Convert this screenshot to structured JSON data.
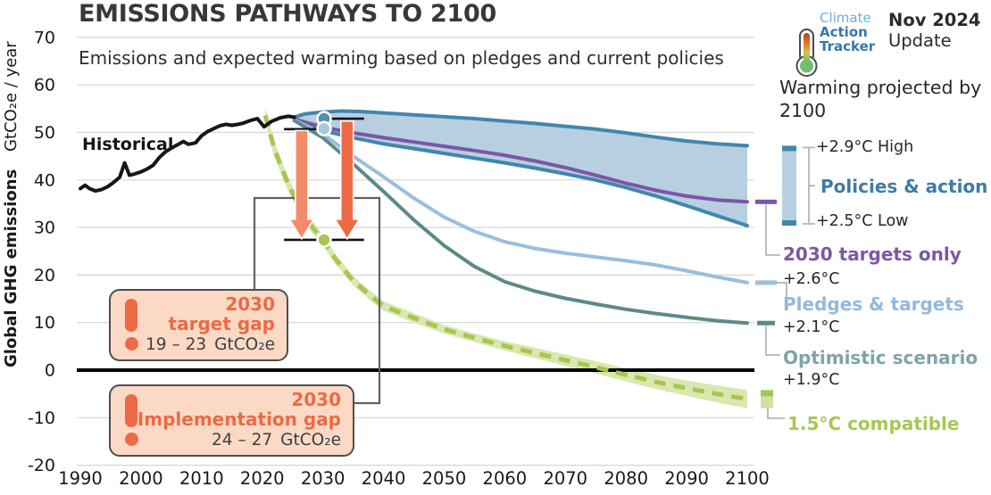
{
  "header": {
    "title": "EMISSIONS PATHWAYS TO 2100",
    "subtitle": "Emissions and expected warming based on pledges and current policies"
  },
  "logo": {
    "brand_line1": "Climate",
    "brand_line2": "Action",
    "brand_line3": "Tracker",
    "release_line1": "Nov 2024",
    "release_line2": "Update"
  },
  "axis": {
    "y_label_bold": "Global GHG emissions",
    "y_label_unit": "GtCO₂e / year"
  },
  "chart_labels": {
    "historical": "Historical"
  },
  "legend": {
    "heading": "Warming projected by 2100",
    "high": "+2.9°C High",
    "low": "+2.5°C Low",
    "targets_temp": "+2.6°C",
    "pledges_temp": "+2.1°C",
    "optimistic_temp": "+1.9°C"
  },
  "gap_boxes": {
    "target": {
      "year": "2030",
      "label": "target gap",
      "range": "19 – 23",
      "unit": "GtCO₂e"
    },
    "implementation": {
      "year": "2030",
      "label": "Implementation gap",
      "range": "24 – 27",
      "unit": "GtCO₂e"
    }
  },
  "colors": {
    "policies_stroke": "#4186ae",
    "policies_fill": "#b7cfe1",
    "targets_2030": "#7b57a5",
    "pledges": "#9abedd",
    "optimistic": "#5c8a88",
    "compatible_line": "#a4c751",
    "compatible_fill": "#dbe7af",
    "historical": "#161616",
    "arrow_target": "#f28b69",
    "arrow_implementation": "#ee6a47",
    "box_fill": "#fcd9c5",
    "box_text": "#ec6a45",
    "gridline": "#d5d5d5"
  },
  "chart_data": {
    "type": "line",
    "title": "EMISSIONS PATHWAYS TO 2100",
    "xlabel": "",
    "ylabel": "Global GHG emissions GtCO₂e / year",
    "xlim": [
      1990,
      2100
    ],
    "ylim": [
      -20,
      70
    ],
    "x_ticks": [
      1990,
      2000,
      2010,
      2020,
      2030,
      2040,
      2050,
      2060,
      2070,
      2080,
      2090,
      2100
    ],
    "y_ticks": [
      70,
      60,
      50,
      40,
      30,
      20,
      10,
      0,
      -10,
      -20
    ],
    "grid": true,
    "legend_position": "right",
    "series": [
      {
        "id": "historical",
        "name": "Historical",
        "type": "line",
        "color": "#161616",
        "width": 4,
        "points": [
          [
            1990,
            38.2
          ],
          [
            1990.8,
            38.9
          ],
          [
            1991.5,
            38.2
          ],
          [
            1992.5,
            37.7
          ],
          [
            1993.5,
            38.0
          ],
          [
            1994.5,
            38.6
          ],
          [
            1995.5,
            39.5
          ],
          [
            1996.5,
            40.6
          ],
          [
            1997.3,
            43.6
          ],
          [
            1998.1,
            41.0
          ],
          [
            1999,
            41.3
          ],
          [
            2000,
            41.7
          ],
          [
            2001,
            42.3
          ],
          [
            2002,
            43.1
          ],
          [
            2003,
            44.7
          ],
          [
            2004,
            45.9
          ],
          [
            2005,
            46.7
          ],
          [
            2006,
            47.4
          ],
          [
            2007,
            48.1
          ],
          [
            2007.8,
            47.5
          ],
          [
            2009,
            47.8
          ],
          [
            2010,
            49.3
          ],
          [
            2011,
            50.2
          ],
          [
            2012,
            50.8
          ],
          [
            2013,
            51.4
          ],
          [
            2014,
            51.7
          ],
          [
            2015,
            51.5
          ],
          [
            2016,
            51.7
          ],
          [
            2017,
            52.0
          ],
          [
            2018,
            52.5
          ],
          [
            2019.2,
            52.9
          ],
          [
            2020.3,
            51.2
          ],
          [
            2021.5,
            52.3
          ],
          [
            2023,
            53.1
          ],
          [
            2024.3,
            53.4
          ],
          [
            2025.3,
            53.2
          ]
        ]
      },
      {
        "id": "policies",
        "name": "Policies & action",
        "type": "band",
        "warming_high": "+2.9°C",
        "warming_low": "+2.5°C",
        "stroke": "#4186ae",
        "fill": "#b7cfe1",
        "width": 4,
        "upper": [
          [
            2025.3,
            53.2
          ],
          [
            2027,
            53.9
          ],
          [
            2030,
            54.3
          ],
          [
            2033,
            54.5
          ],
          [
            2036,
            54.4
          ],
          [
            2040,
            54.1
          ],
          [
            2045,
            53.7
          ],
          [
            2050,
            53.3
          ],
          [
            2055,
            52.9
          ],
          [
            2060,
            52.4
          ],
          [
            2065,
            51.9
          ],
          [
            2070,
            51.3
          ],
          [
            2075,
            50.7
          ],
          [
            2080,
            49.9
          ],
          [
            2085,
            49.0
          ],
          [
            2090,
            48.2
          ],
          [
            2095,
            47.6
          ],
          [
            2100,
            47.2
          ]
        ],
        "lower": [
          [
            2025.3,
            52.6
          ],
          [
            2027,
            51.6
          ],
          [
            2030,
            50.4
          ],
          [
            2035,
            48.9
          ],
          [
            2040,
            47.6
          ],
          [
            2045,
            46.6
          ],
          [
            2050,
            45.6
          ],
          [
            2055,
            44.6
          ],
          [
            2060,
            43.6
          ],
          [
            2065,
            42.5
          ],
          [
            2070,
            41.3
          ],
          [
            2075,
            40.0
          ],
          [
            2080,
            38.4
          ],
          [
            2085,
            36.6
          ],
          [
            2090,
            34.6
          ],
          [
            2095,
            32.5
          ],
          [
            2100,
            30.4
          ]
        ]
      },
      {
        "id": "targets2030",
        "name": "2030 targets only",
        "type": "line",
        "warming": "+2.6°C",
        "color": "#7b57a5",
        "width": 4,
        "points": [
          [
            2025.3,
            52.8
          ],
          [
            2030,
            51.1
          ],
          [
            2035,
            49.9
          ],
          [
            2040,
            48.9
          ],
          [
            2045,
            48.0
          ],
          [
            2050,
            47.1
          ],
          [
            2055,
            46.2
          ],
          [
            2060,
            45.2
          ],
          [
            2065,
            44.0
          ],
          [
            2070,
            42.6
          ],
          [
            2075,
            41.0
          ],
          [
            2080,
            39.3
          ],
          [
            2085,
            37.8
          ],
          [
            2090,
            36.6
          ],
          [
            2095,
            35.8
          ],
          [
            2100,
            35.4
          ]
        ]
      },
      {
        "id": "pledges",
        "name": "Pledges & targets",
        "type": "line",
        "warming": "+2.1°C",
        "color": "#9abedd",
        "width": 4,
        "points": [
          [
            2025.3,
            52.6
          ],
          [
            2030,
            49.7
          ],
          [
            2035,
            45.0
          ],
          [
            2040,
            40.7
          ],
          [
            2045,
            36.2
          ],
          [
            2050,
            32.2
          ],
          [
            2055,
            29.2
          ],
          [
            2060,
            27.0
          ],
          [
            2065,
            25.6
          ],
          [
            2070,
            24.6
          ],
          [
            2075,
            23.8
          ],
          [
            2080,
            23.0
          ],
          [
            2085,
            22.1
          ],
          [
            2090,
            20.9
          ],
          [
            2095,
            19.6
          ],
          [
            2100,
            18.4
          ]
        ]
      },
      {
        "id": "optimistic",
        "name": "Optimistic scenario",
        "type": "line",
        "warming": "+1.9°C",
        "color": "#5c8a88",
        "width": 4,
        "points": [
          [
            2025.3,
            52.5
          ],
          [
            2030,
            48.9
          ],
          [
            2035,
            43.4
          ],
          [
            2040,
            37.6
          ],
          [
            2045,
            31.6
          ],
          [
            2050,
            26.2
          ],
          [
            2055,
            21.8
          ],
          [
            2060,
            18.6
          ],
          [
            2065,
            16.6
          ],
          [
            2070,
            15.1
          ],
          [
            2075,
            13.9
          ],
          [
            2080,
            12.8
          ],
          [
            2085,
            11.9
          ],
          [
            2090,
            11.1
          ],
          [
            2095,
            10.4
          ],
          [
            2100,
            9.9
          ]
        ]
      },
      {
        "id": "compatible15",
        "name": "1.5°C compatible",
        "type": "dashed-band",
        "color": "#a4c751",
        "fill": "#dbe7af",
        "width": 5,
        "dash": [
          13,
          9
        ],
        "points": [
          [
            2020.5,
            53.6
          ],
          [
            2022,
            46.5
          ],
          [
            2024,
            40.0
          ],
          [
            2026,
            34.5
          ],
          [
            2028,
            30.5
          ],
          [
            2030,
            27.4
          ],
          [
            2032,
            23.5
          ],
          [
            2035,
            18.8
          ],
          [
            2038,
            15.5
          ],
          [
            2040,
            13.5
          ],
          [
            2045,
            11.0
          ],
          [
            2050,
            8.6
          ],
          [
            2055,
            6.8
          ],
          [
            2060,
            5.1
          ],
          [
            2065,
            3.6
          ],
          [
            2070,
            2.1
          ],
          [
            2075,
            0.6
          ],
          [
            2080,
            -1.0
          ],
          [
            2085,
            -2.5
          ],
          [
            2090,
            -3.8
          ],
          [
            2095,
            -5.0
          ],
          [
            2100,
            -6.1
          ]
        ],
        "upper": [
          [
            2020.5,
            55.2
          ],
          [
            2022,
            48.1
          ],
          [
            2024,
            41.5
          ],
          [
            2026,
            35.9
          ],
          [
            2028,
            31.8
          ],
          [
            2030,
            28.6
          ],
          [
            2032,
            24.6
          ],
          [
            2035,
            19.8
          ],
          [
            2038,
            16.5
          ],
          [
            2040,
            14.5
          ],
          [
            2045,
            12.0
          ],
          [
            2050,
            9.5
          ],
          [
            2055,
            7.7
          ],
          [
            2060,
            6.1
          ],
          [
            2065,
            4.7
          ],
          [
            2070,
            3.3
          ],
          [
            2075,
            1.9
          ],
          [
            2080,
            0.4
          ],
          [
            2085,
            -1.0
          ],
          [
            2090,
            -2.2
          ],
          [
            2095,
            -3.2
          ],
          [
            2100,
            -4.2
          ]
        ],
        "lower": [
          [
            2020.5,
            52.0
          ],
          [
            2022,
            44.9
          ],
          [
            2024,
            38.5
          ],
          [
            2026,
            33.1
          ],
          [
            2028,
            29.2
          ],
          [
            2030,
            26.2
          ],
          [
            2032,
            22.4
          ],
          [
            2035,
            17.8
          ],
          [
            2038,
            14.5
          ],
          [
            2040,
            12.5
          ],
          [
            2045,
            10.0
          ],
          [
            2050,
            7.7
          ],
          [
            2055,
            5.9
          ],
          [
            2060,
            4.1
          ],
          [
            2065,
            2.5
          ],
          [
            2070,
            0.9
          ],
          [
            2075,
            -0.7
          ],
          [
            2080,
            -2.4
          ],
          [
            2085,
            -4.0
          ],
          [
            2090,
            -5.4
          ],
          [
            2095,
            -6.8
          ],
          [
            2100,
            -8.0
          ]
        ]
      }
    ],
    "annotations": {
      "dots_2030": [
        {
          "year": 2030.2,
          "value": 52.9,
          "color": "#4e8fb5"
        },
        {
          "year": 2030.2,
          "value": 50.8,
          "color": "#a9c9e2"
        },
        {
          "year": 2030.2,
          "value": 27.4,
          "color": "#a4c751"
        }
      ],
      "ticks": [
        {
          "from_year": 2030.9,
          "to_year": 2036.8,
          "value": 52.9
        },
        {
          "from_year": 2023.6,
          "to_year": 2029.4,
          "value": 50.7
        },
        {
          "from_year": 2023.6,
          "to_year": 2036.8,
          "value": 27.4
        }
      ],
      "gap_arrows": [
        {
          "year": 2026.5,
          "from": 50.4,
          "to": 27.6,
          "color": "#f28b69"
        },
        {
          "year": 2034.0,
          "from": 52.4,
          "to": 27.6,
          "color": "#ee6a47"
        }
      ]
    }
  }
}
